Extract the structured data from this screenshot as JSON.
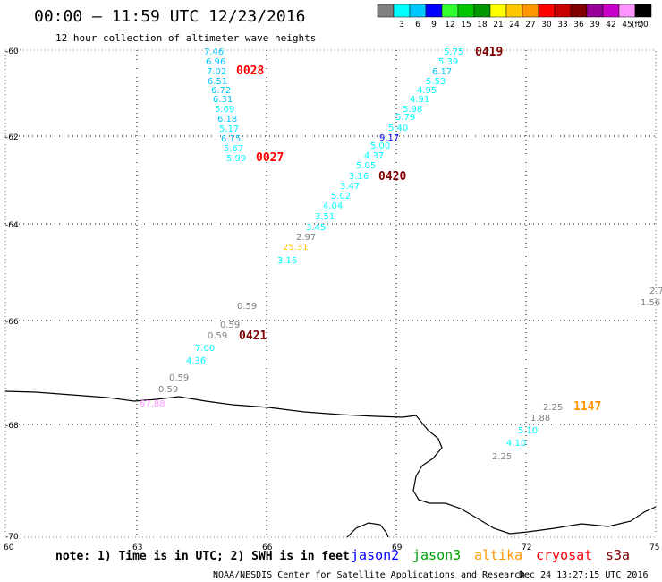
{
  "header": {
    "title": "00:00 – 11:59 UTC 12/23/2016",
    "subtitle": "12 hour collection of altimeter wave heights"
  },
  "legend": {
    "unit": "(ft)",
    "bins": [
      {
        "label": "",
        "color": "#808080"
      },
      {
        "label": "3",
        "color": "#00ffff"
      },
      {
        "label": "6",
        "color": "#00c8ff"
      },
      {
        "label": "9",
        "color": "#0000ff"
      },
      {
        "label": "12",
        "color": "#32ff32"
      },
      {
        "label": "15",
        "color": "#00c800"
      },
      {
        "label": "18",
        "color": "#009600"
      },
      {
        "label": "21",
        "color": "#ffff00"
      },
      {
        "label": "24",
        "color": "#ffc800"
      },
      {
        "label": "27",
        "color": "#ff9600"
      },
      {
        "label": "30",
        "color": "#ff0000"
      },
      {
        "label": "33",
        "color": "#c80000"
      },
      {
        "label": "36",
        "color": "#800000"
      },
      {
        "label": "39",
        "color": "#960096"
      },
      {
        "label": "42",
        "color": "#c800c8"
      },
      {
        "label": "45",
        "color": "#ff96ff"
      },
      {
        "label": "70",
        "color": "#000000"
      }
    ]
  },
  "axes": {
    "lat_ticks": [
      "-60",
      "-62",
      "-64",
      "-66",
      "-68",
      "-70"
    ],
    "lon_ticks": [
      "60",
      "63",
      "66",
      "69",
      "72",
      "75"
    ]
  },
  "pass_labels": [
    {
      "text": "0028",
      "color": "#ff0000"
    },
    {
      "text": "0027",
      "color": "#ff0000"
    },
    {
      "text": "0419",
      "color": "#800000"
    },
    {
      "text": "0420",
      "color": "#800000"
    },
    {
      "text": "0421",
      "color": "#800000"
    },
    {
      "text": "1147",
      "color": "#ff9600"
    }
  ],
  "track_0028": [
    "7.46",
    "6.96",
    "7.02",
    "6.51",
    "6.72",
    "6.31",
    "5.69",
    "6.18",
    "5.17",
    "6.15",
    "5.67",
    "5.99"
  ],
  "track_0419_0420": [
    "5.75",
    "5.39",
    "6.17",
    "5.53",
    "4.95",
    "4.91",
    "5.98",
    "5.79",
    "5.40",
    "9.17",
    "5.00",
    "4.37",
    "5.05",
    "3.16",
    "3.47",
    "5.02",
    "4.04",
    "3.51",
    "3.45",
    "2.97",
    "25.31",
    "3.16"
  ],
  "track_0421": [
    "0.59",
    "0.59",
    "0.59",
    "7.00",
    "4.36",
    "0.59",
    "0.59",
    "67.88"
  ],
  "track_1147": [
    "2.25",
    "1.88",
    "5.10",
    "4.10",
    "2.25"
  ],
  "edge_values": [
    "2.7",
    "1.56"
  ],
  "footer": {
    "note": "note: 1) Time is in UTC; 2) SWH is in feet",
    "missions": [
      {
        "text": "jason2",
        "color": "#0000ff"
      },
      {
        "text": "jason3",
        "color": "#00a000"
      },
      {
        "text": "altika",
        "color": "#ff9600"
      },
      {
        "text": "cryosat",
        "color": "#ff0000"
      },
      {
        "text": "s3a",
        "color": "#800000"
      }
    ],
    "credit": "NOAA/NESDIS Center for Satellite Applications and Research",
    "timestamp": "Dec 24 13:27:15 UTC 2016"
  }
}
